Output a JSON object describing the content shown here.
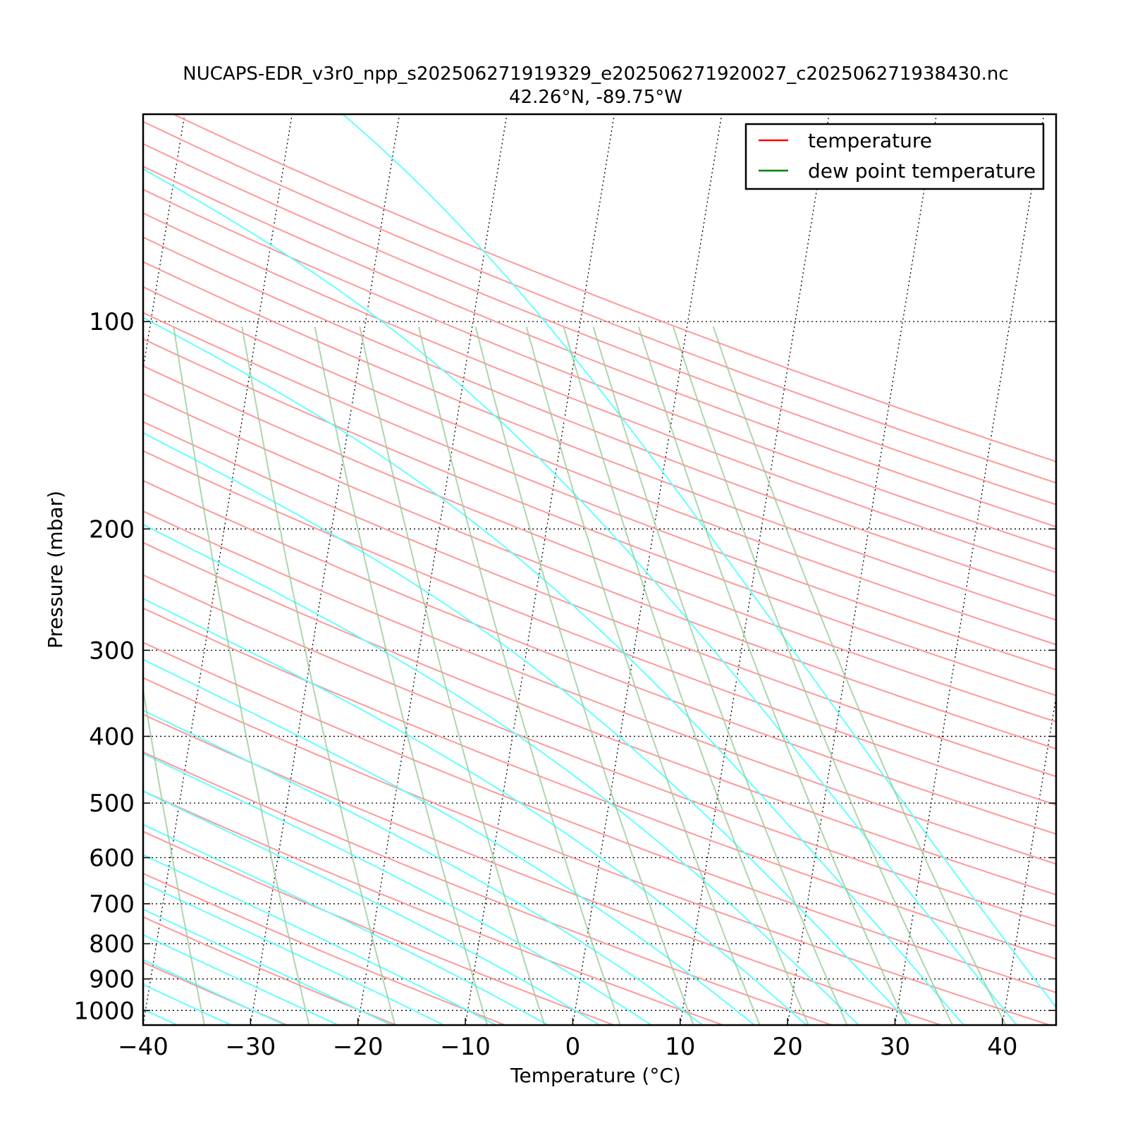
{
  "chart_data": {
    "type": "line",
    "diagram": "skew-T log-P",
    "title": "NUCAPS-EDR_v3r0_npp_s202506271919329_e202506271920027_c202506271938430.nc",
    "subtitle": "42.26°N, -89.75°W",
    "xlabel": "Temperature (°C)",
    "ylabel": "Pressure (mbar)",
    "xlim": [
      -40,
      45
    ],
    "ylim": [
      1050,
      50
    ],
    "y_scale": "log",
    "x_ticks": [
      "−40",
      "−30",
      "−20",
      "−10",
      "0",
      "10",
      "20",
      "30",
      "40"
    ],
    "y_ticks": [
      "100",
      "200",
      "300",
      "400",
      "500",
      "600",
      "700",
      "800",
      "900",
      "1000"
    ],
    "grid": true,
    "legend": {
      "placement": "top-right",
      "entries": [
        {
          "label": "temperature",
          "color": "#ff0000"
        },
        {
          "label": "dew point temperature",
          "color": "#008000"
        }
      ]
    },
    "series": [
      {
        "name": "temperature",
        "color": "#ff0000",
        "points": []
      },
      {
        "name": "dew point temperature",
        "color": "#008000",
        "points": []
      }
    ],
    "background_lines": {
      "dry_adiabats_color": "#ff9999",
      "moist_adiabats_color": "#66ffff",
      "mixing_ratio_color": "#99cc99",
      "isotherms_color": "#000000"
    }
  }
}
